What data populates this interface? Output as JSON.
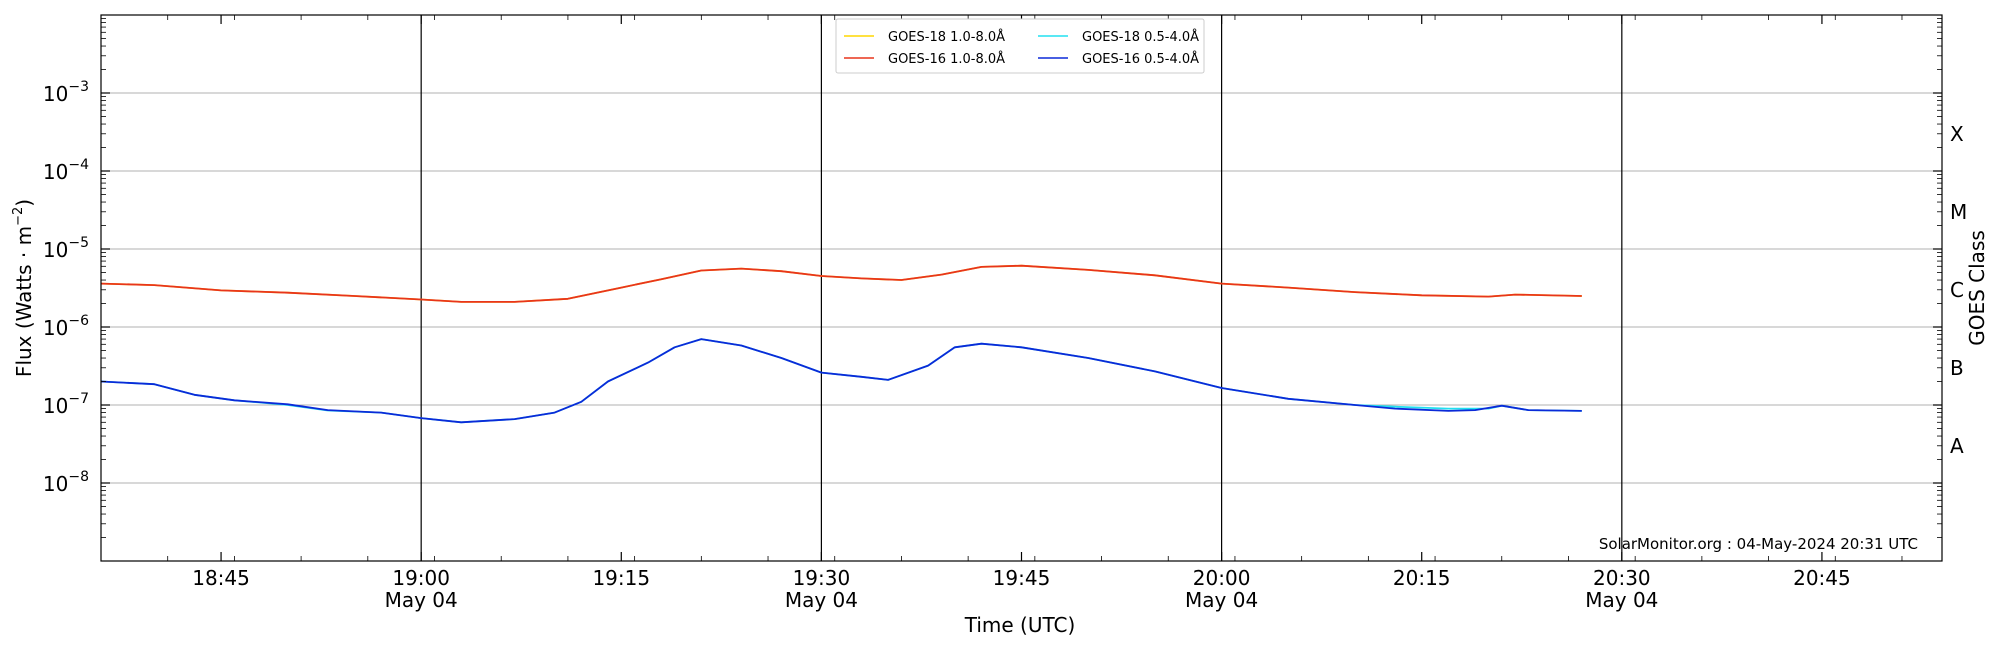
{
  "chart_data": {
    "type": "line",
    "xlabel": "Time (UTC)",
    "ylabel_main": "Flux (Watts · m",
    "ylabel_sup": "−2",
    "ylabel_close": ")",
    "right_ylabel": "GOES Class",
    "y_scale": "log",
    "ylim": [
      1e-09,
      0.01
    ],
    "xlim": [
      "18:36",
      "20:54"
    ],
    "grid": "horizontal",
    "credit": "SolarMonitor.org : 04-May-2024 20:31 UTC",
    "legend_placement": "top-center",
    "y_ticks": [
      {
        "value": 0.001,
        "base": "10",
        "exp": "−3"
      },
      {
        "value": 0.0001,
        "base": "10",
        "exp": "−4"
      },
      {
        "value": 1e-05,
        "base": "10",
        "exp": "−5"
      },
      {
        "value": 1e-06,
        "base": "10",
        "exp": "−6"
      },
      {
        "value": 1e-07,
        "base": "10",
        "exp": "−7"
      },
      {
        "value": 1e-08,
        "base": "10",
        "exp": "−8"
      }
    ],
    "x_ticks": [
      {
        "time": "18:45",
        "label": "18:45",
        "sublabel": ""
      },
      {
        "time": "19:00",
        "label": "19:00",
        "sublabel": "May 04"
      },
      {
        "time": "19:15",
        "label": "19:15",
        "sublabel": ""
      },
      {
        "time": "19:30",
        "label": "19:30",
        "sublabel": "May 04"
      },
      {
        "time": "19:45",
        "label": "19:45",
        "sublabel": ""
      },
      {
        "time": "20:00",
        "label": "20:00",
        "sublabel": "May 04"
      },
      {
        "time": "20:15",
        "label": "20:15",
        "sublabel": ""
      },
      {
        "time": "20:30",
        "label": "20:30",
        "sublabel": "May 04"
      },
      {
        "time": "20:45",
        "label": "20:45",
        "sublabel": ""
      }
    ],
    "vlines": [
      "19:00",
      "19:30",
      "20:00",
      "20:30"
    ],
    "goes_classes": [
      {
        "label": "X",
        "value": 0.0003
      },
      {
        "label": "M",
        "value": 3e-05
      },
      {
        "label": "C",
        "value": 3e-06
      },
      {
        "label": "B",
        "value": 3e-07
      },
      {
        "label": "A",
        "value": 3e-08
      }
    ],
    "series": [
      {
        "name": "GOES-18 1.0-8.0Å",
        "color": "#ffd700",
        "points": [
          [
            "18:36",
            3.6e-06
          ],
          [
            "18:40",
            3.45e-06
          ],
          [
            "18:45",
            2.95e-06
          ],
          [
            "18:50",
            2.75e-06
          ],
          [
            "18:55",
            2.5e-06
          ],
          [
            "19:00",
            2.25e-06
          ],
          [
            "19:03",
            2.1e-06
          ],
          [
            "19:07",
            2.1e-06
          ],
          [
            "19:11",
            2.3e-06
          ],
          [
            "19:15",
            3.2e-06
          ],
          [
            "19:18",
            4.1e-06
          ],
          [
            "19:21",
            5.3e-06
          ],
          [
            "19:24",
            5.6e-06
          ],
          [
            "19:27",
            5.2e-06
          ],
          [
            "19:30",
            4.5e-06
          ],
          [
            "19:33",
            4.2e-06
          ],
          [
            "19:36",
            4e-06
          ],
          [
            "19:39",
            4.7e-06
          ],
          [
            "19:42",
            5.9e-06
          ],
          [
            "19:45",
            6.1e-06
          ],
          [
            "19:50",
            5.4e-06
          ],
          [
            "19:55",
            4.6e-06
          ],
          [
            "20:00",
            3.6e-06
          ],
          [
            "20:05",
            3.2e-06
          ],
          [
            "20:10",
            2.8e-06
          ],
          [
            "20:15",
            2.55e-06
          ],
          [
            "20:20",
            2.45e-06
          ],
          [
            "20:22",
            2.6e-06
          ],
          [
            "20:27",
            2.5e-06
          ]
        ]
      },
      {
        "name": "GOES-16 1.0-8.0Å",
        "color": "#e8351c",
        "points": [
          [
            "18:36",
            3.6e-06
          ],
          [
            "18:40",
            3.45e-06
          ],
          [
            "18:45",
            2.95e-06
          ],
          [
            "18:50",
            2.75e-06
          ],
          [
            "18:55",
            2.5e-06
          ],
          [
            "19:00",
            2.25e-06
          ],
          [
            "19:03",
            2.1e-06
          ],
          [
            "19:07",
            2.1e-06
          ],
          [
            "19:11",
            2.3e-06
          ],
          [
            "19:15",
            3.2e-06
          ],
          [
            "19:18",
            4.1e-06
          ],
          [
            "19:21",
            5.3e-06
          ],
          [
            "19:24",
            5.6e-06
          ],
          [
            "19:27",
            5.2e-06
          ],
          [
            "19:30",
            4.5e-06
          ],
          [
            "19:33",
            4.2e-06
          ],
          [
            "19:36",
            4e-06
          ],
          [
            "19:39",
            4.7e-06
          ],
          [
            "19:42",
            5.9e-06
          ],
          [
            "19:45",
            6.1e-06
          ],
          [
            "19:50",
            5.4e-06
          ],
          [
            "19:55",
            4.6e-06
          ],
          [
            "20:00",
            3.6e-06
          ],
          [
            "20:05",
            3.2e-06
          ],
          [
            "20:10",
            2.8e-06
          ],
          [
            "20:15",
            2.55e-06
          ],
          [
            "20:20",
            2.45e-06
          ],
          [
            "20:22",
            2.6e-06
          ],
          [
            "20:27",
            2.5e-06
          ]
        ]
      },
      {
        "name": "GOES-18 0.5-4.0Å",
        "color": "#22e0f0",
        "points": [
          [
            "18:36",
            2e-07
          ],
          [
            "18:40",
            1.85e-07
          ],
          [
            "18:43",
            1.35e-07
          ],
          [
            "18:46",
            1.15e-07
          ],
          [
            "18:50",
            1e-07
          ],
          [
            "18:53",
            8.5e-08
          ],
          [
            "18:57",
            8e-08
          ],
          [
            "19:00",
            6.8e-08
          ],
          [
            "19:03",
            6e-08
          ],
          [
            "19:07",
            6.6e-08
          ],
          [
            "19:10",
            8e-08
          ],
          [
            "19:12",
            1.1e-07
          ],
          [
            "19:14",
            2e-07
          ],
          [
            "19:17",
            3.5e-07
          ],
          [
            "19:19",
            5.5e-07
          ],
          [
            "19:21",
            7e-07
          ],
          [
            "19:24",
            5.8e-07
          ],
          [
            "19:27",
            4e-07
          ],
          [
            "19:30",
            2.6e-07
          ],
          [
            "19:33",
            2.3e-07
          ],
          [
            "19:35",
            2.1e-07
          ],
          [
            "19:38",
            3.2e-07
          ],
          [
            "19:40",
            5.5e-07
          ],
          [
            "19:42",
            6.1e-07
          ],
          [
            "19:45",
            5.5e-07
          ],
          [
            "19:50",
            4e-07
          ],
          [
            "19:55",
            2.7e-07
          ],
          [
            "20:00",
            1.65e-07
          ],
          [
            "20:05",
            1.2e-07
          ],
          [
            "20:10",
            1e-07
          ],
          [
            "20:13",
            9.5e-08
          ],
          [
            "20:17",
            9e-08
          ],
          [
            "20:20",
            9e-08
          ],
          [
            "20:21",
            9.8e-08
          ],
          [
            "20:23",
            8.6e-08
          ],
          [
            "20:27",
            8.4e-08
          ]
        ]
      },
      {
        "name": "GOES-16 0.5-4.0Å",
        "color": "#0b2ad8",
        "points": [
          [
            "18:36",
            2e-07
          ],
          [
            "18:40",
            1.85e-07
          ],
          [
            "18:43",
            1.35e-07
          ],
          [
            "18:46",
            1.15e-07
          ],
          [
            "18:50",
            1.02e-07
          ],
          [
            "18:53",
            8.6e-08
          ],
          [
            "18:57",
            8e-08
          ],
          [
            "19:00",
            6.8e-08
          ],
          [
            "19:03",
            6e-08
          ],
          [
            "19:07",
            6.6e-08
          ],
          [
            "19:10",
            8e-08
          ],
          [
            "19:12",
            1.1e-07
          ],
          [
            "19:14",
            2e-07
          ],
          [
            "19:17",
            3.5e-07
          ],
          [
            "19:19",
            5.5e-07
          ],
          [
            "19:21",
            7e-07
          ],
          [
            "19:24",
            5.8e-07
          ],
          [
            "19:27",
            4e-07
          ],
          [
            "19:30",
            2.6e-07
          ],
          [
            "19:33",
            2.3e-07
          ],
          [
            "19:35",
            2.1e-07
          ],
          [
            "19:38",
            3.2e-07
          ],
          [
            "19:40",
            5.5e-07
          ],
          [
            "19:42",
            6.1e-07
          ],
          [
            "19:45",
            5.5e-07
          ],
          [
            "19:50",
            4e-07
          ],
          [
            "19:55",
            2.7e-07
          ],
          [
            "20:00",
            1.65e-07
          ],
          [
            "20:05",
            1.2e-07
          ],
          [
            "20:10",
            1e-07
          ],
          [
            "20:13",
            9e-08
          ],
          [
            "20:17",
            8.4e-08
          ],
          [
            "20:19",
            8.6e-08
          ],
          [
            "20:21",
            9.8e-08
          ],
          [
            "20:23",
            8.6e-08
          ],
          [
            "20:27",
            8.4e-08
          ]
        ]
      }
    ]
  }
}
